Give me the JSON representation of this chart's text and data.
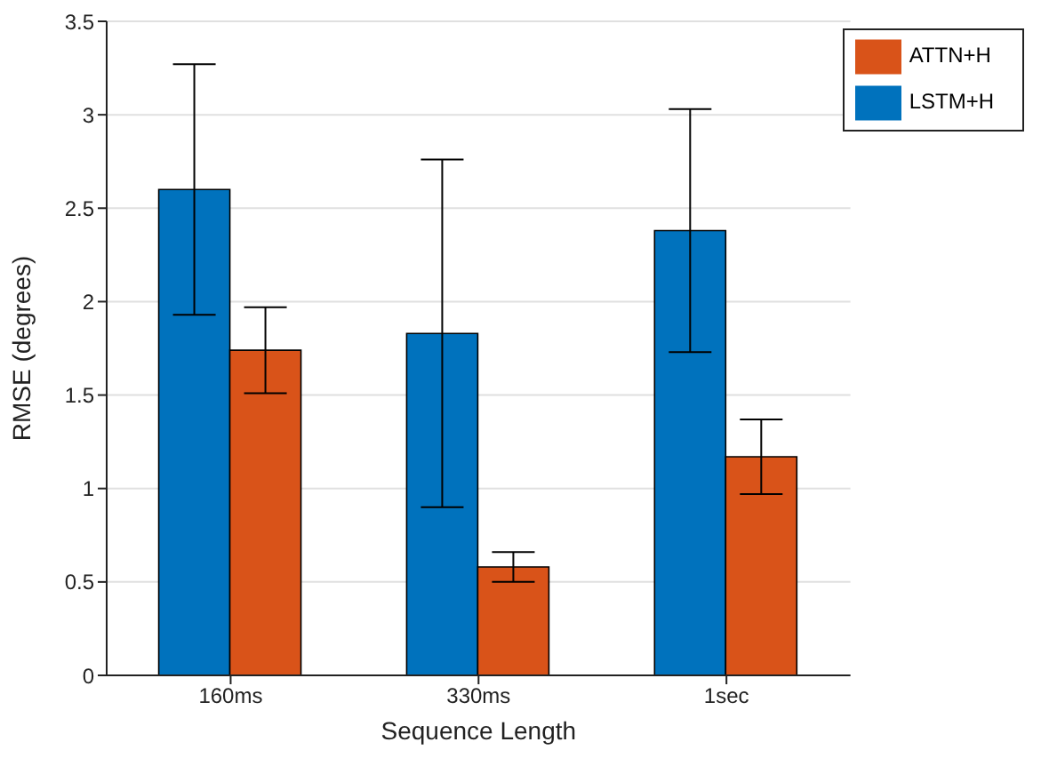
{
  "chart_data": {
    "type": "bar",
    "xlabel": "Sequence Length",
    "ylabel": "RMSE (degrees)",
    "categories": [
      "160ms",
      "330ms",
      "1sec"
    ],
    "series": [
      {
        "name": "LSTM+H",
        "color": "#0072bd",
        "values": [
          2.6,
          1.83,
          2.38
        ],
        "errors": [
          0.67,
          0.93,
          0.65
        ]
      },
      {
        "name": "ATTN+H",
        "color": "#d95319",
        "values": [
          1.74,
          0.58,
          1.17
        ],
        "errors": [
          0.23,
          0.08,
          0.2
        ]
      }
    ],
    "ylim": [
      0,
      3.5
    ],
    "yticks": [
      0,
      0.5,
      1,
      1.5,
      2,
      2.5,
      3,
      3.5
    ],
    "grid": "y",
    "legend": "top right"
  }
}
